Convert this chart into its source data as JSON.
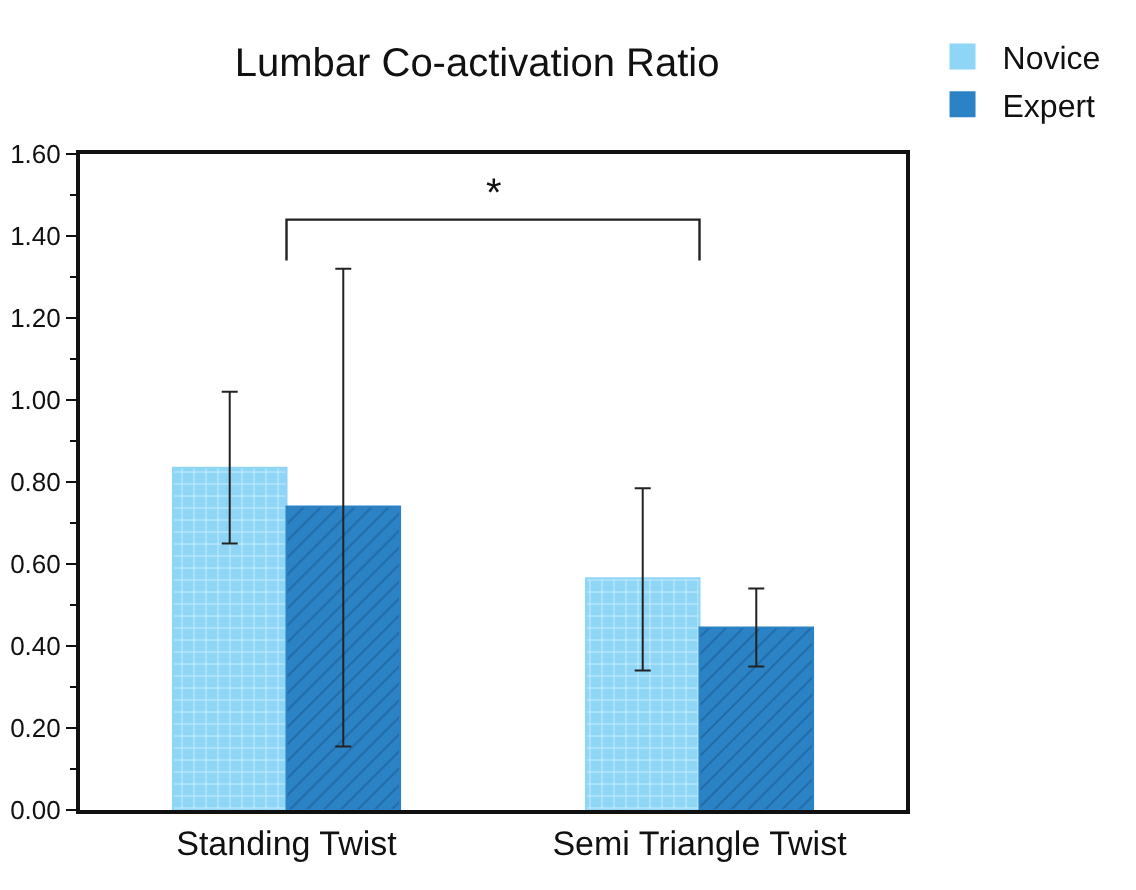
{
  "chart_data": {
    "type": "bar",
    "title": "Lumbar Co-activation Ratio",
    "categories": [
      "Standing Twist",
      "Semi Triangle Twist"
    ],
    "series": [
      {
        "name": "Novice",
        "color": "#8fd6f6",
        "values": [
          0.835,
          0.565
        ],
        "errors": [
          [
            0.65,
            1.02
          ],
          [
            0.34,
            0.785
          ]
        ]
      },
      {
        "name": "Expert",
        "color": "#2b82c4",
        "values": [
          0.74,
          0.445
        ],
        "errors": [
          [
            0.155,
            1.32
          ],
          [
            0.35,
            0.54
          ]
        ]
      }
    ],
    "ylim": [
      0,
      1.6
    ],
    "yticks": [
      {
        "value": 0,
        "label": "0.00"
      },
      {
        "value": 0.2,
        "label": "0.20"
      },
      {
        "value": 0.4,
        "label": "0.40"
      },
      {
        "value": 0.6,
        "label": "0.60"
      },
      {
        "value": 0.8,
        "label": "0.80"
      },
      {
        "value": 1.0,
        "label": "1.00"
      },
      {
        "value": 1.2,
        "label": "1.20"
      },
      {
        "value": 1.4,
        "label": "1.40"
      },
      {
        "value": 1.6,
        "label": "1.60"
      }
    ],
    "grid": false,
    "legend": "top right",
    "annotations": [
      {
        "text": "*"
      }
    ]
  }
}
